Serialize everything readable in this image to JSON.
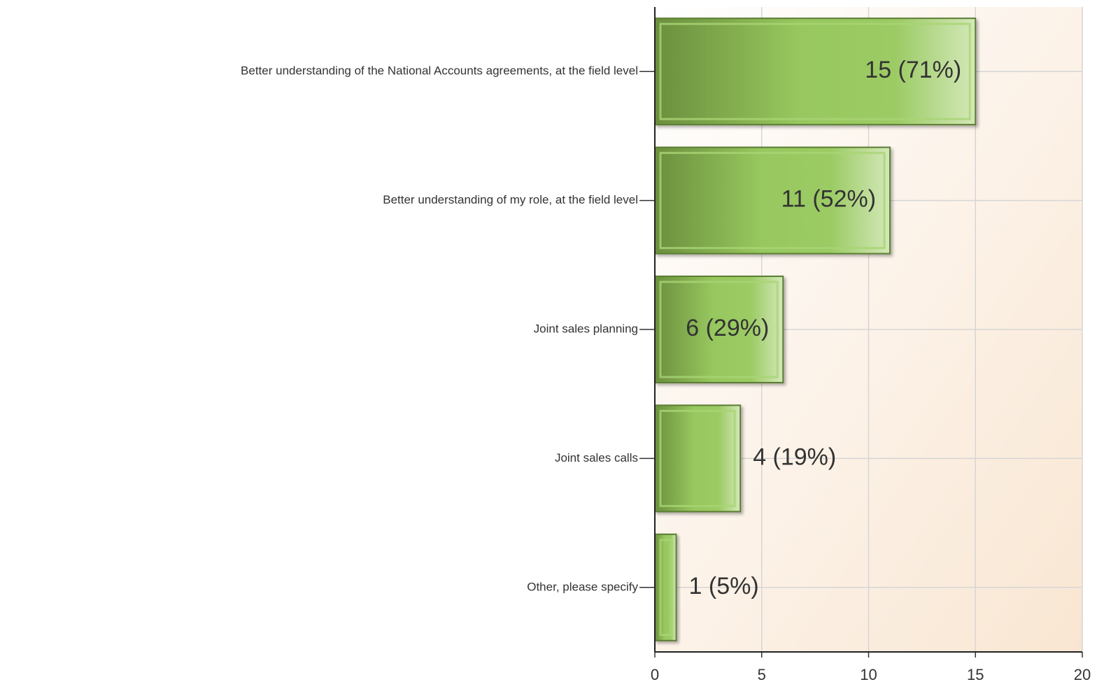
{
  "chart_data": {
    "type": "bar",
    "orientation": "horizontal",
    "categories": [
      "Better understanding of the National Accounts agreements, at the field level",
      "Better understanding of my role, at the field level",
      "Joint sales planning",
      "Joint sales calls",
      "Other, please specify"
    ],
    "values": [
      15,
      11,
      6,
      4,
      1
    ],
    "value_labels": [
      "15 (71%)",
      "11 (52%)",
      "6 (29%)",
      "4 (19%)",
      "1 (5%)"
    ],
    "color": "#8fc45a",
    "xlim": [
      0,
      20
    ],
    "xticks": [
      0,
      5,
      10,
      15,
      20
    ],
    "grid": true
  }
}
